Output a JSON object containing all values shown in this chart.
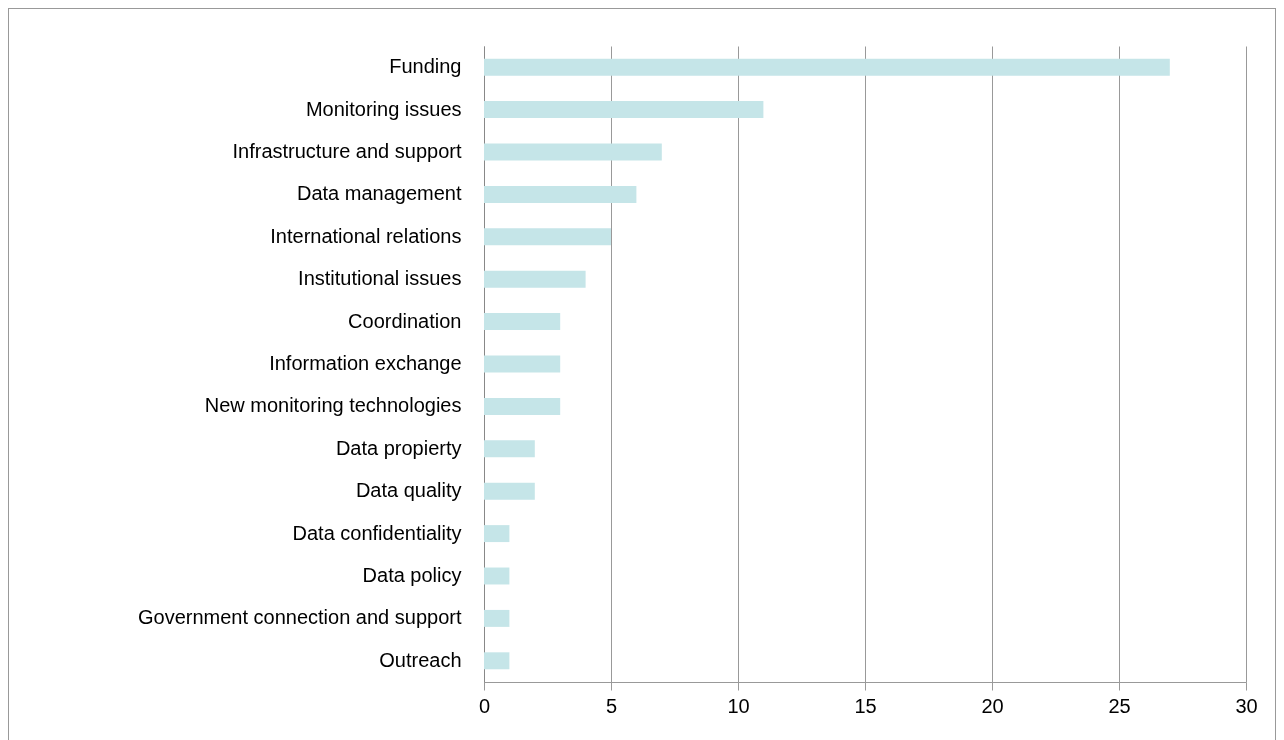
{
  "chart_data": {
    "type": "bar",
    "orientation": "horizontal",
    "categories": [
      "Funding",
      "Monitoring issues",
      "Infrastructure and support",
      "Data management",
      "International relations",
      "Institutional issues",
      "Coordination",
      "Information exchange",
      "New monitoring technologies",
      "Data propierty",
      "Data quality",
      "Data confidentiality",
      "Data policy",
      "Government connection and support",
      "Outreach"
    ],
    "values": [
      27,
      11,
      7,
      6,
      5,
      4,
      3,
      3,
      3,
      2,
      2,
      1,
      1,
      1,
      1
    ],
    "color": "#c5e5e8",
    "xlim": [
      0,
      30
    ],
    "xticks": [
      0,
      5,
      10,
      15,
      20,
      25,
      30
    ],
    "grid": "x"
  }
}
